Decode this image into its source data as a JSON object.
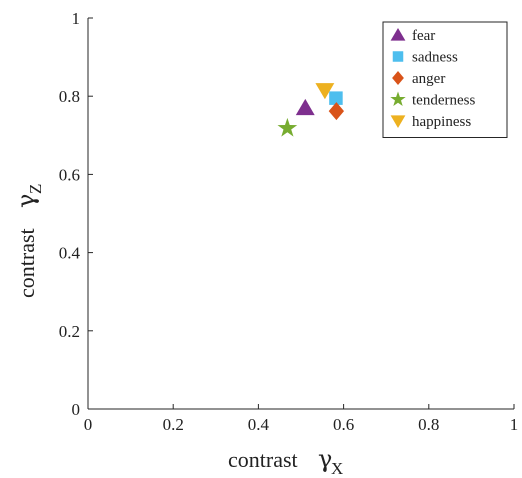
{
  "chart_data": {
    "type": "scatter",
    "title": "",
    "xlabel": {
      "text": "contrast",
      "symbol": "γ",
      "subscript": "X"
    },
    "ylabel": {
      "text": "contrast",
      "symbol": "γ",
      "subscript": "Z"
    },
    "xlim": [
      0,
      1
    ],
    "ylim": [
      0,
      1
    ],
    "xticks": [
      0,
      0.2,
      0.4,
      0.6,
      0.8,
      1
    ],
    "yticks": [
      0,
      0.2,
      0.4,
      0.6,
      0.8,
      1
    ],
    "xtick_labels": [
      "0",
      "0.2",
      "0.4",
      "0.6",
      "0.8",
      "1"
    ],
    "ytick_labels": [
      "0",
      "0.2",
      "0.4",
      "0.6",
      "0.8",
      "1"
    ],
    "grid": false,
    "legend_position": "top-right",
    "series": [
      {
        "name": "fear",
        "marker": "triangle-up",
        "color": "#7e2f8e",
        "x": 0.51,
        "y": 0.77
      },
      {
        "name": "sadness",
        "marker": "square",
        "color": "#4dbeee",
        "x": 0.582,
        "y": 0.795
      },
      {
        "name": "anger",
        "marker": "diamond",
        "color": "#d95319",
        "x": 0.583,
        "y": 0.762
      },
      {
        "name": "tenderness",
        "marker": "star",
        "color": "#77ac30",
        "x": 0.468,
        "y": 0.718
      },
      {
        "name": "happiness",
        "marker": "triangle-down",
        "color": "#edb120",
        "x": 0.556,
        "y": 0.815
      }
    ]
  }
}
